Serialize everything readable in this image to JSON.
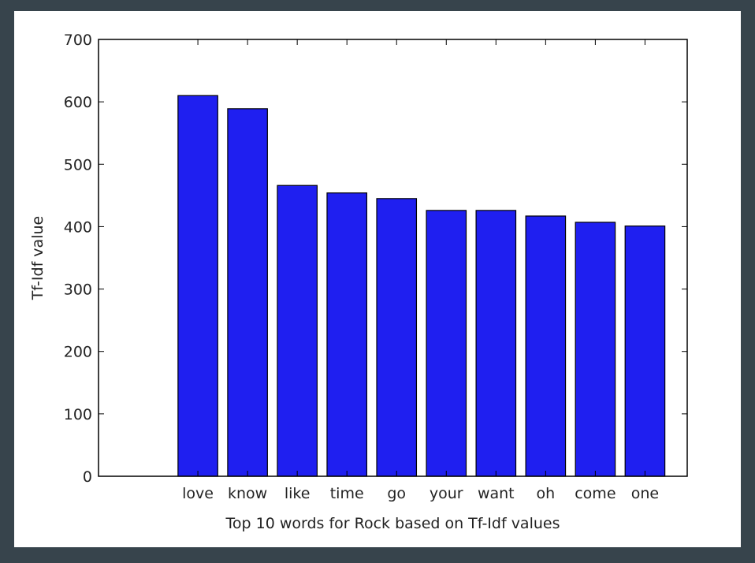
{
  "chart_data": {
    "type": "bar",
    "categories": [
      "love",
      "know",
      "like",
      "time",
      "go",
      "your",
      "want",
      "oh",
      "come",
      "one"
    ],
    "values": [
      610,
      589,
      466,
      454,
      445,
      426,
      426,
      417,
      407,
      401
    ],
    "xlabel": "Top 10 words for Rock based on Tf-Idf values",
    "ylabel": "Tf-Idf value",
    "ylim": [
      0,
      700
    ],
    "yticks": [
      "0",
      "100",
      "200",
      "300",
      "400",
      "500",
      "600",
      "700"
    ],
    "bar_color": "#1f1ff0",
    "bar_edge_color": "#000000",
    "grid": false
  }
}
